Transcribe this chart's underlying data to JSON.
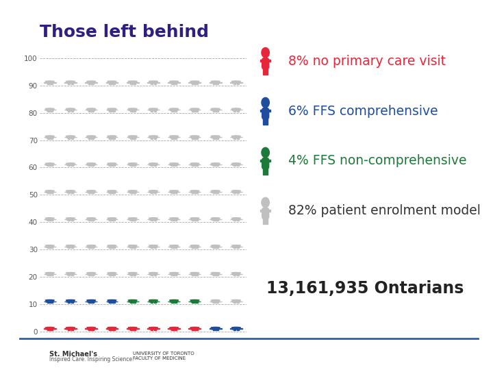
{
  "title": "Those left behind",
  "title_color": "#2E2080",
  "title_fontsize": 18,
  "grid_rows": 10,
  "grid_cols": 10,
  "colors": {
    "red": "#E8263A",
    "blue": "#1F4E9E",
    "green": "#1E7A3A",
    "gray": "#C0C0C0"
  },
  "row_colors": [
    [
      "red",
      "red",
      "red",
      "red",
      "red",
      "red",
      "red",
      "red",
      "blue",
      "blue"
    ],
    [
      "blue",
      "blue",
      "blue",
      "blue",
      "green",
      "green",
      "green",
      "green",
      "gray",
      "gray"
    ],
    [
      "gray",
      "gray",
      "gray",
      "gray",
      "gray",
      "gray",
      "gray",
      "gray",
      "gray",
      "gray"
    ],
    [
      "gray",
      "gray",
      "gray",
      "gray",
      "gray",
      "gray",
      "gray",
      "gray",
      "gray",
      "gray"
    ],
    [
      "gray",
      "gray",
      "gray",
      "gray",
      "gray",
      "gray",
      "gray",
      "gray",
      "gray",
      "gray"
    ],
    [
      "gray",
      "gray",
      "gray",
      "gray",
      "gray",
      "gray",
      "gray",
      "gray",
      "gray",
      "gray"
    ],
    [
      "gray",
      "gray",
      "gray",
      "gray",
      "gray",
      "gray",
      "gray",
      "gray",
      "gray",
      "gray"
    ],
    [
      "gray",
      "gray",
      "gray",
      "gray",
      "gray",
      "gray",
      "gray",
      "gray",
      "gray",
      "gray"
    ],
    [
      "gray",
      "gray",
      "gray",
      "gray",
      "gray",
      "gray",
      "gray",
      "gray",
      "gray",
      "gray"
    ],
    [
      "gray",
      "gray",
      "gray",
      "gray",
      "gray",
      "gray",
      "gray",
      "gray",
      "gray",
      "gray"
    ]
  ],
  "legend_items": [
    {
      "color": "#E8263A",
      "text": "8% no primary care visit",
      "text_color": "#E8263A"
    },
    {
      "color": "#1F4E9E",
      "text": "6% FFS comprehensive",
      "text_color": "#1F4E9E"
    },
    {
      "color": "#1E7A3A",
      "text": "4% FFS non-comprehensive",
      "text_color": "#1E7A3A"
    },
    {
      "color": "#C0C0C0",
      "text": "82% patient enrolment model",
      "text_color": "#333333"
    }
  ],
  "yticks": [
    0,
    10,
    20,
    30,
    40,
    50,
    60,
    70,
    80,
    90,
    100
  ],
  "bottom_text": "13,161,935 Ontarians",
  "background_color": "#FFFFFF",
  "footer_line_color": "#2E5FAC"
}
